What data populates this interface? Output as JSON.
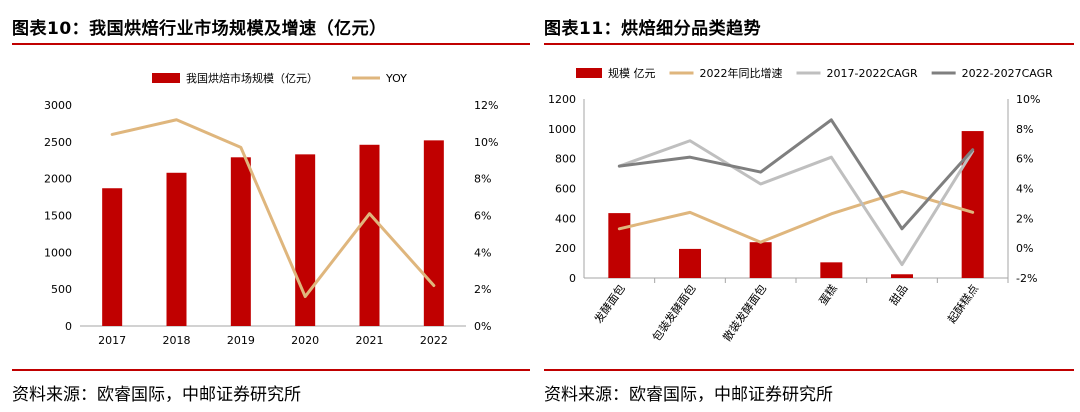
{
  "colors": {
    "bar": "#c00000",
    "rule": "#c00000",
    "yoy": "#dfb67d",
    "growth2022": "#dfb67d",
    "cagr1722": "#bfbfbf",
    "cagr2227": "#7f7f7f",
    "axis": "#a6a6a6"
  },
  "left": {
    "title": "图表10：我国烘焙行业市场规模及增速（亿元）",
    "source": "资料来源：欧睿国际，中邮证券研究所"
  },
  "right": {
    "title": "图表11：烘焙细分品类趋势",
    "source": "资料来源：欧睿国际，中邮证券研究所"
  },
  "chart_data": [
    {
      "type": "bar",
      "categories": [
        "2017",
        "2018",
        "2019",
        "2020",
        "2021",
        "2022"
      ],
      "series": [
        {
          "name": "我国烘焙市场规模（亿元）",
          "type": "bar",
          "axis": "left",
          "values": [
            1870,
            2080,
            2290,
            2330,
            2460,
            2520
          ]
        },
        {
          "name": "YOY",
          "type": "line",
          "axis": "right",
          "values": [
            10.4,
            11.2,
            9.7,
            1.6,
            6.1,
            2.2
          ]
        }
      ],
      "ylim": [
        0,
        3000
      ],
      "yticks": [
        "0",
        "500",
        "1000",
        "1500",
        "2000",
        "2500",
        "3000"
      ],
      "y2lim": [
        0,
        12
      ],
      "y2ticks": [
        "0%",
        "2%",
        "4%",
        "6%",
        "8%",
        "10%",
        "12%"
      ],
      "legend": "top-center"
    },
    {
      "type": "bar",
      "categories": [
        "发酵面包",
        "包装发酵面包",
        "散装发酵面包",
        "蛋糕",
        "甜品",
        "起酥糕点"
      ],
      "series": [
        {
          "name": "规模 亿元",
          "type": "bar",
          "axis": "left",
          "values": [
            435,
            195,
            240,
            105,
            25,
            985
          ]
        },
        {
          "name": "2022年同比增速",
          "type": "line",
          "axis": "right",
          "values": [
            1.3,
            2.4,
            0.4,
            2.3,
            3.8,
            2.4
          ]
        },
        {
          "name": "2017-2022CAGR",
          "type": "line",
          "axis": "right",
          "values": [
            5.5,
            7.2,
            4.3,
            6.1,
            -1.1,
            6.5
          ]
        },
        {
          "name": "2022-2027CAGR",
          "type": "line",
          "axis": "right",
          "values": [
            5.5,
            6.1,
            5.1,
            8.6,
            1.3,
            6.6
          ]
        }
      ],
      "ylim": [
        0,
        1200
      ],
      "yticks": [
        "0",
        "200",
        "400",
        "600",
        "800",
        "1000",
        "1200"
      ],
      "y2lim": [
        -2,
        10
      ],
      "y2ticks": [
        "-2%",
        "0%",
        "2%",
        "4%",
        "6%",
        "8%",
        "10%"
      ],
      "legend": "top"
    }
  ]
}
